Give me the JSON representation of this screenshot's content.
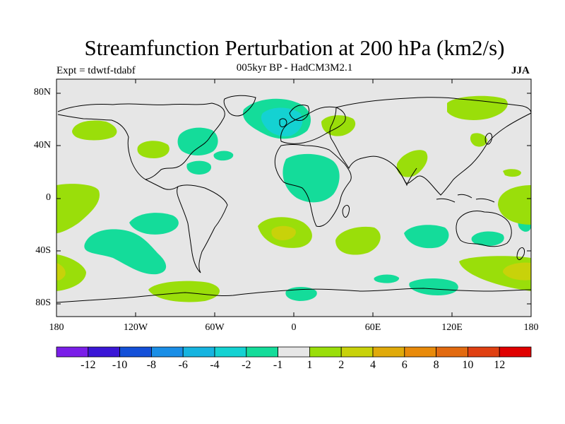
{
  "title": "Streamfunction Perturbation at 200 hPa (km2/s)",
  "subtitle": "005kyr BP - HadCM3M2.1",
  "expt_label": "Expt = tdwtf-tdabf",
  "season": "JJA",
  "lat_labels": [
    "80N",
    "40N",
    "0",
    "40S",
    "80S"
  ],
  "lon_labels": [
    "180",
    "120W",
    "60W",
    "0",
    "60E",
    "120E",
    "180"
  ],
  "colorbar": {
    "colors": [
      "#7a1ee8",
      "#3a16d6",
      "#1450d8",
      "#1a8ee6",
      "#16b4e0",
      "#14d2d2",
      "#14dc9a",
      "#e6e6e6",
      "#9ade0a",
      "#c8d20a",
      "#e0aa0a",
      "#e88a0a",
      "#e26a10",
      "#e04012",
      "#e00000"
    ],
    "labels": [
      "-12",
      "-10",
      "-8",
      "-6",
      "-4",
      "-2",
      "-1",
      "1",
      "2",
      "4",
      "6",
      "8",
      "10",
      "12"
    ]
  },
  "map_colors": {
    "background": "#e6e6e6",
    "neg_weak": "#14dc9a",
    "neg_mid": "#14d2d2",
    "pos_weak": "#9ade0a",
    "pos_mid": "#c8d20a",
    "coast": "#000000"
  }
}
